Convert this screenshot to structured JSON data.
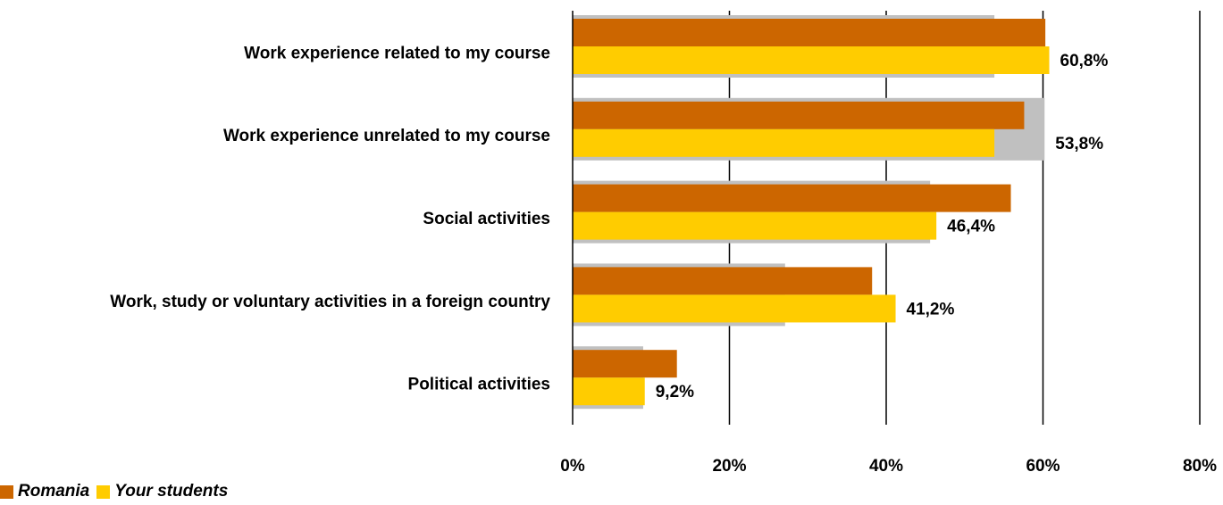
{
  "chart_data": {
    "type": "bar",
    "orientation": "horizontal",
    "categories": [
      "Work experience related to my course",
      "Work experience unrelated to my course",
      "Social activities",
      "Work, study or voluntary activities in a foreign country",
      "Political activities"
    ],
    "series": [
      {
        "name": "",
        "color": "#c0c0c0",
        "values": [
          53.8,
          60.2,
          45.6,
          27.1,
          9.0
        ]
      },
      {
        "name": "Romania",
        "color": "#cc6600",
        "values": [
          60.3,
          57.6,
          55.9,
          38.2,
          13.3
        ]
      },
      {
        "name": "Your students",
        "color": "#ffcc00",
        "values": [
          60.8,
          53.8,
          46.4,
          41.2,
          9.2
        ]
      }
    ],
    "data_labels": [
      "60,8%",
      "53,8%",
      "46,4%",
      "41,2%",
      "9,2%"
    ],
    "x_ticks": [
      "0%",
      "20%",
      "40%",
      "60%",
      "80%"
    ],
    "xlim": [
      0,
      80
    ],
    "grid": true,
    "legend_position": "bottom-left",
    "title": "",
    "xlabel": "",
    "ylabel": ""
  }
}
